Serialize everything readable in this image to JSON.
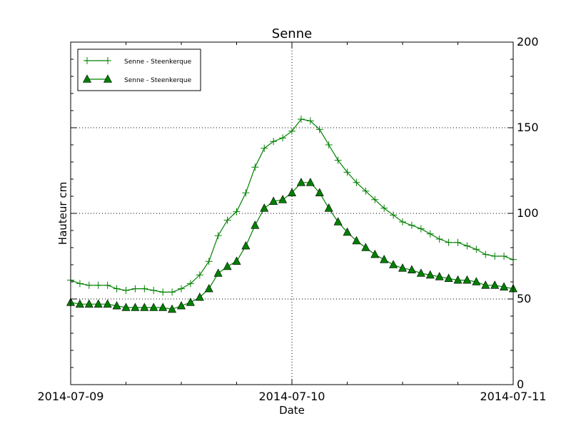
{
  "chart_data": {
    "type": "line",
    "title": "Senne",
    "xlabel": "Date",
    "ylabel": "Hauteur cm",
    "xlim": [
      "2014-07-09T00:00",
      "2014-07-11T00:00"
    ],
    "ylim": [
      0,
      200
    ],
    "yticks": [
      "0",
      "50",
      "100",
      "150",
      "200"
    ],
    "xticks": [
      "2014-07-09",
      "2014-07-10",
      "2014-07-11"
    ],
    "grid": true,
    "y_axis_side": "right",
    "legend_position": "top-left",
    "x": [
      "2014-07-09T00:00",
      "2014-07-09T01:00",
      "2014-07-09T02:00",
      "2014-07-09T03:00",
      "2014-07-09T04:00",
      "2014-07-09T05:00",
      "2014-07-09T06:00",
      "2014-07-09T07:00",
      "2014-07-09T08:00",
      "2014-07-09T09:00",
      "2014-07-09T10:00",
      "2014-07-09T11:00",
      "2014-07-09T12:00",
      "2014-07-09T13:00",
      "2014-07-09T14:00",
      "2014-07-09T15:00",
      "2014-07-09T16:00",
      "2014-07-09T17:00",
      "2014-07-09T18:00",
      "2014-07-09T19:00",
      "2014-07-09T20:00",
      "2014-07-09T21:00",
      "2014-07-09T22:00",
      "2014-07-09T23:00",
      "2014-07-10T00:00",
      "2014-07-10T01:00",
      "2014-07-10T02:00",
      "2014-07-10T03:00",
      "2014-07-10T04:00",
      "2014-07-10T05:00",
      "2014-07-10T06:00",
      "2014-07-10T07:00",
      "2014-07-10T08:00",
      "2014-07-10T09:00",
      "2014-07-10T10:00",
      "2014-07-10T11:00",
      "2014-07-10T12:00",
      "2014-07-10T13:00",
      "2014-07-10T14:00",
      "2014-07-10T15:00",
      "2014-07-10T16:00",
      "2014-07-10T17:00",
      "2014-07-10T18:00",
      "2014-07-10T19:00",
      "2014-07-10T20:00",
      "2014-07-10T21:00",
      "2014-07-10T22:00",
      "2014-07-10T23:00",
      "2014-07-11T00:00"
    ],
    "series": [
      {
        "name": "Senne - Steenkerque",
        "marker": "plus",
        "color": "#008000",
        "values": [
          61,
          59,
          58,
          58,
          58,
          56,
          55,
          56,
          56,
          55,
          54,
          54,
          56,
          59,
          64,
          72,
          87,
          96,
          101,
          112,
          127,
          138,
          142,
          144,
          148,
          155,
          154,
          149,
          140,
          131,
          124,
          118,
          113,
          108,
          103,
          99,
          95,
          93,
          91,
          88,
          85,
          83,
          83,
          81,
          79,
          76,
          75,
          75,
          73
        ]
      },
      {
        "name": "Senne - Steenkerque",
        "marker": "triangle",
        "color": "#008000",
        "values": [
          48,
          47,
          47,
          47,
          47,
          46,
          45,
          45,
          45,
          45,
          45,
          44,
          46,
          48,
          51,
          56,
          65,
          69,
          72,
          81,
          93,
          103,
          107,
          108,
          112,
          118,
          118,
          112,
          103,
          95,
          89,
          84,
          80,
          76,
          73,
          70,
          68,
          67,
          65,
          64,
          63,
          62,
          61,
          61,
          60,
          58,
          58,
          57,
          56
        ]
      }
    ]
  }
}
